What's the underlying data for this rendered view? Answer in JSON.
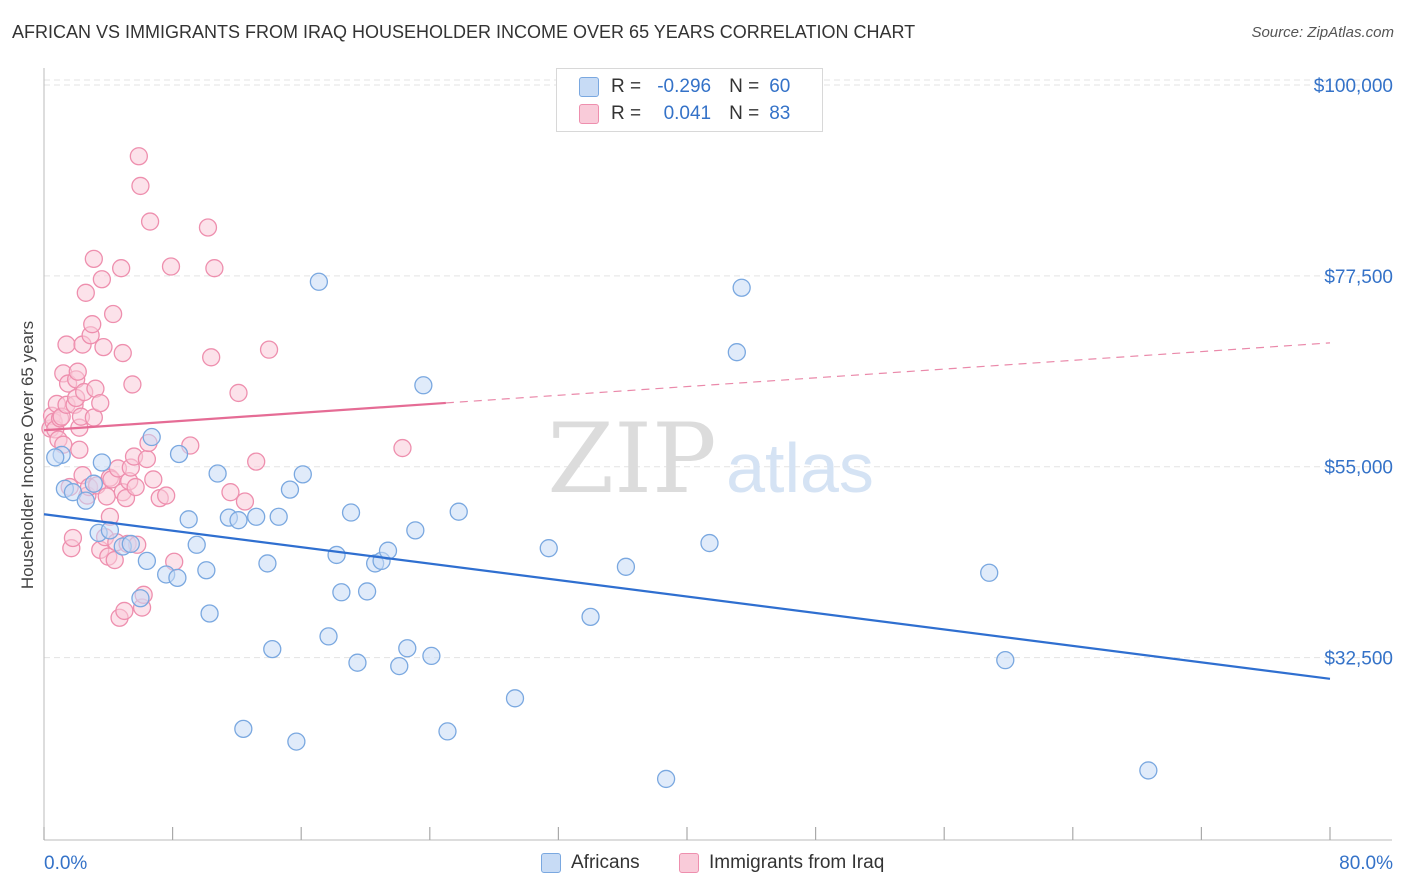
{
  "title": "AFRICAN VS IMMIGRANTS FROM IRAQ HOUSEHOLDER INCOME OVER 65 YEARS CORRELATION CHART",
  "source": "Source: ZipAtlas.com",
  "watermark": {
    "zip": "ZIP",
    "atlas": "atlas"
  },
  "legend_top": {
    "rows": [
      {
        "r_label": "R =",
        "r_value": "-0.296",
        "n_label": "N =",
        "n_value": "60"
      },
      {
        "r_label": "R =",
        "r_value": "0.041",
        "n_label": "N =",
        "n_value": "83"
      }
    ]
  },
  "legend_bottom": [
    "Africans",
    "Immigrants from Iraq"
  ],
  "colors": {
    "blue_fill": "#c7dbf5",
    "blue_stroke": "#7aa8e0",
    "blue_line": "#2f6fd0",
    "pink_fill": "#f9cbd9",
    "pink_stroke": "#ee8fae",
    "pink_line": "#e56c95",
    "tick_text": "#3472c8",
    "grid": "#e3e3e3"
  },
  "chart_data": {
    "type": "scatter",
    "title": "AFRICAN VS IMMIGRANTS FROM IRAQ HOUSEHOLDER INCOME OVER 65 YEARS CORRELATION CHART",
    "xlabel": "",
    "ylabel": "Householder Income Over 65 years",
    "xlim": [
      0,
      80
    ],
    "ylim": [
      11000,
      102000
    ],
    "x_tick_labels": [
      "0.0%",
      "80.0%"
    ],
    "y_ticks": [
      32500,
      55000,
      77500,
      100000
    ],
    "y_tick_labels": [
      "$32,500",
      "$55,000",
      "$77,500",
      "$100,000"
    ],
    "grid": true,
    "series": [
      {
        "name": "Africans",
        "r": -0.296,
        "n": 60,
        "trend": {
          "x0": 0,
          "y0": 49400,
          "x1": 80,
          "y1": 30000,
          "dashed_from": null
        },
        "points": [
          [
            1.1,
            56.4
          ],
          [
            1.3,
            52.4
          ],
          [
            1.8,
            52.0
          ],
          [
            2.6,
            51.0
          ],
          [
            3.1,
            53.0
          ],
          [
            3.6,
            55.5
          ],
          [
            3.4,
            47.2
          ],
          [
            4.1,
            47.5
          ],
          [
            4.9,
            45.6
          ],
          [
            5.4,
            45.9
          ],
          [
            6.0,
            39.5
          ],
          [
            6.4,
            43.9
          ],
          [
            6.7,
            58.5
          ],
          [
            7.6,
            42.3
          ],
          [
            8.3,
            41.9
          ],
          [
            8.4,
            56.5
          ],
          [
            9.0,
            48.8
          ],
          [
            9.5,
            45.8
          ],
          [
            10.1,
            42.8
          ],
          [
            10.3,
            37.7
          ],
          [
            10.8,
            54.2
          ],
          [
            11.5,
            49.0
          ],
          [
            12.1,
            48.7
          ],
          [
            12.4,
            24.1
          ],
          [
            13.2,
            49.1
          ],
          [
            13.9,
            43.6
          ],
          [
            14.2,
            33.5
          ],
          [
            14.6,
            49.1
          ],
          [
            15.3,
            52.3
          ],
          [
            15.7,
            22.6
          ],
          [
            16.1,
            54.1
          ],
          [
            17.1,
            76.8
          ],
          [
            17.7,
            35.0
          ],
          [
            18.2,
            44.6
          ],
          [
            18.5,
            40.2
          ],
          [
            19.1,
            49.6
          ],
          [
            19.5,
            31.9
          ],
          [
            20.1,
            40.3
          ],
          [
            20.6,
            43.6
          ],
          [
            21.0,
            43.9
          ],
          [
            21.4,
            45.1
          ],
          [
            22.1,
            31.5
          ],
          [
            22.6,
            33.6
          ],
          [
            23.1,
            47.5
          ],
          [
            23.6,
            64.6
          ],
          [
            24.1,
            32.7
          ],
          [
            25.1,
            23.8
          ],
          [
            25.8,
            49.7
          ],
          [
            29.3,
            27.7
          ],
          [
            31.4,
            45.4
          ],
          [
            34.0,
            37.3
          ],
          [
            36.2,
            43.2
          ],
          [
            38.7,
            18.2
          ],
          [
            41.4,
            46.0
          ],
          [
            43.1,
            68.5
          ],
          [
            43.4,
            76.1
          ],
          [
            58.8,
            42.5
          ],
          [
            59.8,
            32.2
          ],
          [
            68.7,
            19.2
          ],
          [
            0.7,
            56.1
          ]
        ]
      },
      {
        "name": "Immigrants from Iraq",
        "r": 0.041,
        "n": 83,
        "trend": {
          "x0": 0,
          "y0": 59300,
          "x1": 80,
          "y1": 69600,
          "dashed_from": 25
        },
        "points": [
          [
            0.4,
            59.5
          ],
          [
            0.5,
            61.0
          ],
          [
            0.6,
            60.3
          ],
          [
            0.7,
            59.4
          ],
          [
            0.8,
            62.4
          ],
          [
            0.9,
            58.2
          ],
          [
            1.0,
            60.7
          ],
          [
            1.1,
            60.9
          ],
          [
            1.2,
            66.0
          ],
          [
            1.2,
            57.6
          ],
          [
            1.4,
            62.3
          ],
          [
            1.4,
            69.4
          ],
          [
            1.5,
            64.8
          ],
          [
            1.6,
            52.6
          ],
          [
            1.7,
            45.4
          ],
          [
            1.8,
            46.6
          ],
          [
            1.9,
            62.3
          ],
          [
            2.0,
            65.3
          ],
          [
            2.0,
            63.1
          ],
          [
            2.1,
            66.2
          ],
          [
            2.2,
            57.0
          ],
          [
            2.2,
            59.6
          ],
          [
            2.3,
            60.9
          ],
          [
            2.4,
            54.0
          ],
          [
            2.4,
            69.4
          ],
          [
            2.5,
            63.8
          ],
          [
            2.6,
            75.5
          ],
          [
            2.7,
            51.6
          ],
          [
            2.8,
            52.6
          ],
          [
            2.9,
            70.5
          ],
          [
            3.0,
            71.8
          ],
          [
            3.1,
            79.5
          ],
          [
            3.1,
            60.8
          ],
          [
            3.2,
            64.2
          ],
          [
            3.3,
            52.8
          ],
          [
            3.5,
            45.2
          ],
          [
            3.5,
            62.5
          ],
          [
            3.6,
            77.1
          ],
          [
            3.7,
            69.1
          ],
          [
            3.8,
            46.7
          ],
          [
            3.9,
            51.5
          ],
          [
            4.0,
            44.4
          ],
          [
            4.1,
            49.1
          ],
          [
            4.1,
            53.7
          ],
          [
            4.2,
            53.5
          ],
          [
            4.3,
            73.0
          ],
          [
            4.4,
            44.0
          ],
          [
            4.5,
            46.1
          ],
          [
            4.6,
            54.8
          ],
          [
            4.7,
            37.2
          ],
          [
            4.8,
            78.4
          ],
          [
            4.9,
            68.4
          ],
          [
            4.9,
            52.0
          ],
          [
            5.0,
            38.0
          ],
          [
            5.1,
            51.3
          ],
          [
            5.2,
            45.9
          ],
          [
            5.3,
            53.3
          ],
          [
            5.4,
            54.9
          ],
          [
            5.5,
            64.7
          ],
          [
            5.6,
            56.2
          ],
          [
            5.7,
            52.6
          ],
          [
            5.8,
            45.8
          ],
          [
            5.9,
            91.6
          ],
          [
            6.0,
            88.1
          ],
          [
            6.1,
            38.4
          ],
          [
            6.2,
            39.9
          ],
          [
            6.4,
            55.9
          ],
          [
            6.5,
            57.8
          ],
          [
            6.6,
            83.9
          ],
          [
            6.8,
            53.5
          ],
          [
            7.2,
            51.3
          ],
          [
            7.6,
            51.6
          ],
          [
            7.9,
            78.6
          ],
          [
            8.1,
            43.8
          ],
          [
            9.1,
            57.5
          ],
          [
            10.2,
            83.2
          ],
          [
            10.4,
            67.9
          ],
          [
            10.6,
            78.4
          ],
          [
            11.6,
            52.0
          ],
          [
            12.1,
            63.7
          ],
          [
            12.5,
            50.9
          ],
          [
            13.2,
            55.6
          ],
          [
            14.0,
            68.8
          ]
        ],
        "extra_points": [
          [
            22.3,
            57.2
          ]
        ]
      }
    ]
  }
}
